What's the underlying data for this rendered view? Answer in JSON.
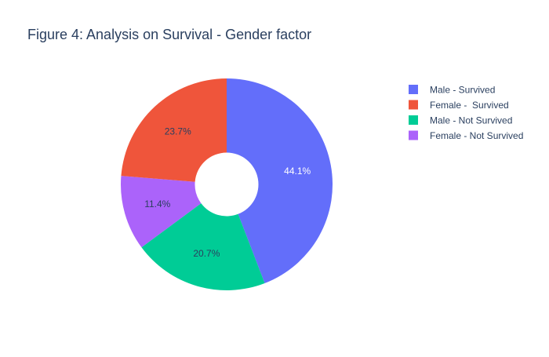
{
  "chart_data": {
    "type": "pie",
    "title": "Figure 4: Analysis on Survival - Gender factor",
    "hole": 0.3,
    "direction": "clockwise",
    "slices": [
      {
        "label": "Male - Survived",
        "value": 44.1,
        "text": "44.1%",
        "color": "#636efa",
        "text_color": "#ffffff"
      },
      {
        "label": "Male - Not Survived",
        "value": 20.7,
        "text": "20.7%",
        "color": "#00cc96",
        "text_color": "#2a3f5f"
      },
      {
        "label": "Female - Not Survived",
        "value": 11.4,
        "text": "11.4%",
        "color": "#ab63fa",
        "text_color": "#2a3f5f"
      },
      {
        "label": "Female -  Survived",
        "value": 23.7,
        "text": "23.7%",
        "color": "#ef553b",
        "text_color": "#2a3f5f"
      }
    ],
    "legend": {
      "placement": "right",
      "entries": [
        {
          "label": "Male - Survived",
          "color": "#636efa"
        },
        {
          "label": "Female -  Survived",
          "color": "#ef553b"
        },
        {
          "label": "Male - Not Survived",
          "color": "#00cc96"
        },
        {
          "label": "Female - Not Survived",
          "color": "#ab63fa"
        }
      ]
    },
    "slice_order_note": ""
  }
}
